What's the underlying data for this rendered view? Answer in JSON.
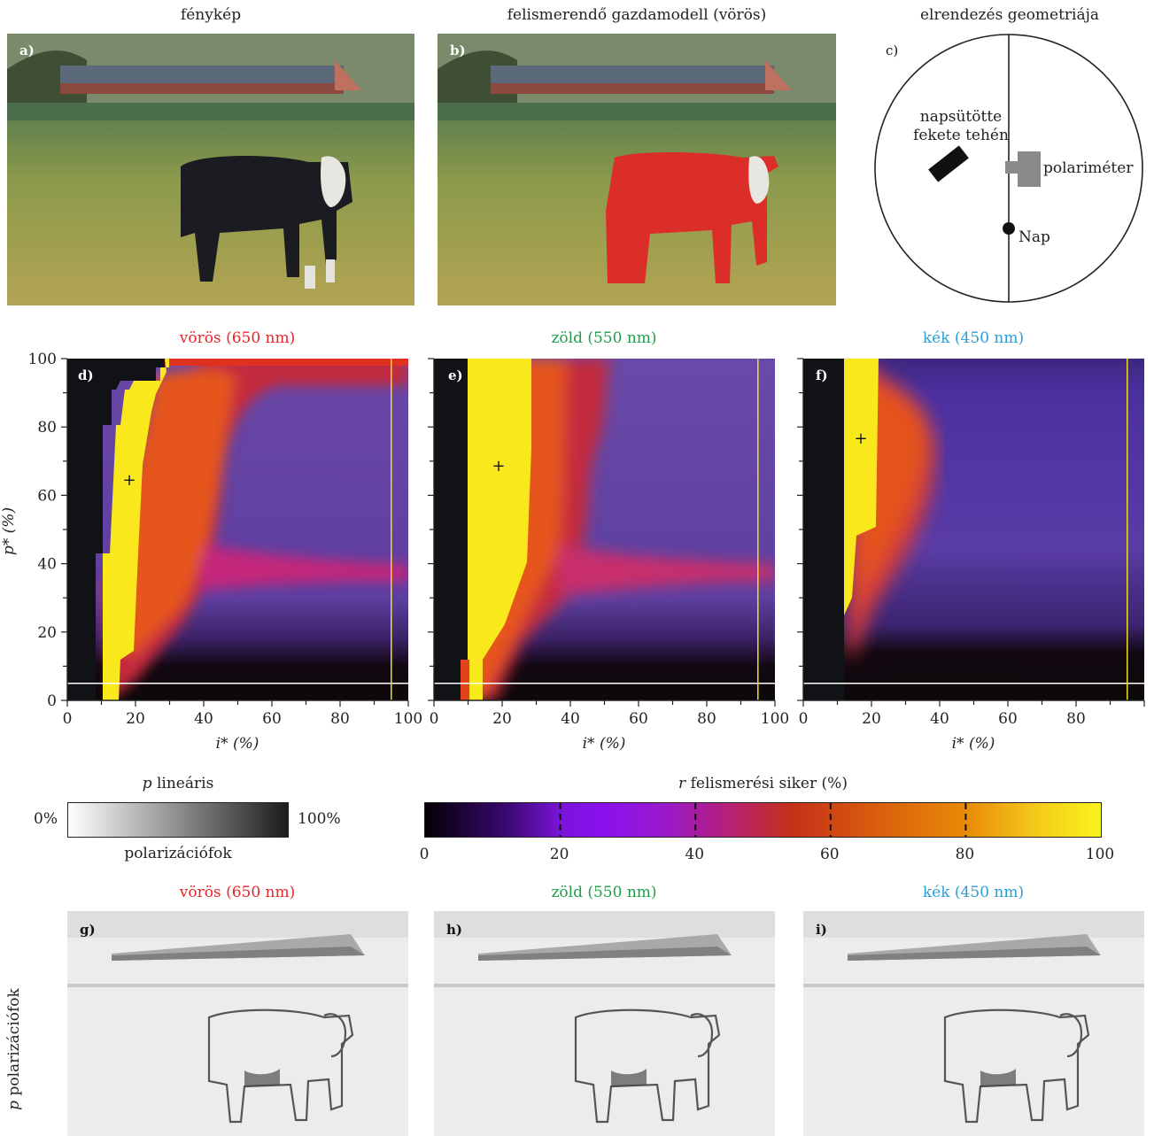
{
  "top_titles": [
    "fénykép",
    "felismerendő gazdamodell (vörös)",
    "elrendezés geometriája"
  ],
  "panel_labels": {
    "a": "a)",
    "b": "b)",
    "c": "c)",
    "d": "d)",
    "e": "e)",
    "f": "f)",
    "g": "g)",
    "h": "h)",
    "i": "i)"
  },
  "geometry": {
    "cow_label": "napsütötte\nfekete tehén",
    "polarimeter_label": "polariméter",
    "sun_label": "Nap"
  },
  "channel_titles": [
    {
      "text": "vörös (650 nm)",
      "color": "#e8262b"
    },
    {
      "text": "zöld (550 nm)",
      "color": "#1f9e4a"
    },
    {
      "text": "kék (450 nm)",
      "color": "#2a9fd6"
    }
  ],
  "colors": {
    "cow_model_red": "#dc2e28",
    "marker_line_white": "#ffffff",
    "marker_line_yellow": "#f0e020"
  },
  "chart_data": [
    {
      "type": "heatmap",
      "title": "vörös (650 nm)",
      "xlabel": "i* (%)",
      "ylabel": "p* (%)",
      "xlim": [
        0,
        100
      ],
      "ylim": [
        0,
        100
      ],
      "x_ticks": [
        "0",
        "20",
        "40",
        "60",
        "80",
        "100"
      ],
      "y_ticks": [
        "0",
        "20",
        "40",
        "60",
        "80",
        "100"
      ],
      "best_point": {
        "x": 18,
        "y": 65
      },
      "hline_p": 5,
      "vline_i": 95
    },
    {
      "type": "heatmap",
      "title": "zöld (550 nm)",
      "xlabel": "i* (%)",
      "ylabel": "p* (%)",
      "xlim": [
        0,
        100
      ],
      "ylim": [
        0,
        100
      ],
      "x_ticks": [
        "0",
        "20",
        "40",
        "60",
        "80",
        "100"
      ],
      "y_ticks": [],
      "best_point": {
        "x": 19,
        "y": 69
      },
      "hline_p": 5,
      "vline_i": 95
    },
    {
      "type": "heatmap",
      "title": "kék (450 nm)",
      "xlabel": "i* (%)",
      "ylabel": "p* (%)",
      "xlim": [
        0,
        100
      ],
      "ylim": [
        0,
        100
      ],
      "x_ticks": [
        "0",
        "20",
        "40",
        "60",
        "80"
      ],
      "y_ticks": [],
      "best_point": {
        "x": 17,
        "y": 77
      },
      "hline_p": 5,
      "vline_i": 95
    }
  ],
  "legend_p": {
    "title_var": "p",
    "title_rest": " lineáris",
    "min": "0%",
    "max": "100%",
    "subtitle": "polarizációfok"
  },
  "legend_r": {
    "title_var": "r",
    "title_rest": " felismerési siker (%)",
    "ticks": [
      "0",
      "20",
      "40",
      "60",
      "80",
      "100"
    ]
  },
  "bottom_side_label_var": "p",
  "bottom_side_label_rest": " polarizációfok"
}
